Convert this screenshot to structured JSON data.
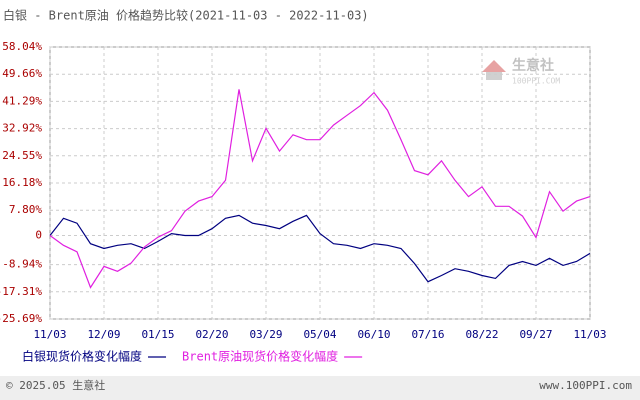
{
  "chart_data": {
    "type": "line",
    "title": "白银 - Brent原油 价格趋势比较(2021-11-03 - 2022-11-03)",
    "watermark": {
      "brand": "生意社",
      "site": "100PPI.COM"
    },
    "categories": [
      "11/03",
      null,
      null,
      null,
      "12/09",
      null,
      null,
      null,
      "01/15",
      null,
      null,
      null,
      "02/20",
      null,
      null,
      null,
      "03/29",
      null,
      null,
      null,
      "05/04",
      null,
      null,
      null,
      "06/10",
      null,
      null,
      null,
      "07/16",
      null,
      null,
      null,
      "08/22",
      null,
      null,
      null,
      "09/27",
      null,
      null,
      null,
      "11/03"
    ],
    "series": [
      {
        "name": "白银现货价格变化幅度",
        "color": "#000080",
        "values": [
          0,
          5.3,
          3.8,
          -2.5,
          -4,
          -3,
          -2.5,
          -4,
          -1.8,
          0.6,
          0,
          0,
          2.1,
          5.3,
          6.2,
          3.8,
          3.1,
          2.1,
          4.4,
          6.2,
          0.6,
          -2.5,
          -3,
          -4,
          -2.5,
          -3,
          -4,
          -8.6,
          -14.2,
          -12.3,
          -10.2,
          -11,
          -12.3,
          -13.2,
          -9.2,
          -8,
          -9.2,
          -7,
          -9.2,
          -8,
          -5.5
        ]
      },
      {
        "name": "Brent原油现货价格变化幅度",
        "color": "#e020e0",
        "values": [
          0,
          -3,
          -5,
          -16,
          -9.5,
          -11,
          -8.5,
          -3.5,
          -0.5,
          1.5,
          7.5,
          10.6,
          12,
          17,
          45,
          23,
          33,
          26,
          31,
          29.5,
          29.5,
          34,
          37,
          40,
          44,
          38.6,
          29.5,
          20,
          18.7,
          23,
          17,
          12,
          15,
          9,
          9,
          6,
          -0.6,
          13.5,
          7.5,
          10.6,
          12
        ]
      }
    ],
    "ylim": [
      -25.69,
      58.04
    ],
    "yticks": [
      {
        "value": 58.04,
        "label": "58.04%"
      },
      {
        "value": 49.66,
        "label": "49.66%"
      },
      {
        "value": 41.29,
        "label": "41.29%"
      },
      {
        "value": 32.92,
        "label": "32.92%"
      },
      {
        "value": 24.55,
        "label": "24.55%"
      },
      {
        "value": 16.18,
        "label": "16.18%"
      },
      {
        "value": 7.8,
        "label": "7.80%"
      },
      0,
      {
        "value": -8.94,
        "label": "-8.94%"
      },
      {
        "value": -17.31,
        "label": "-17.31%"
      },
      {
        "value": -25.69,
        "label": "-25.69%"
      }
    ],
    "grid": true,
    "footer": {
      "left": "© 2025.05 生意社",
      "right": "www.100PPI.com"
    }
  }
}
